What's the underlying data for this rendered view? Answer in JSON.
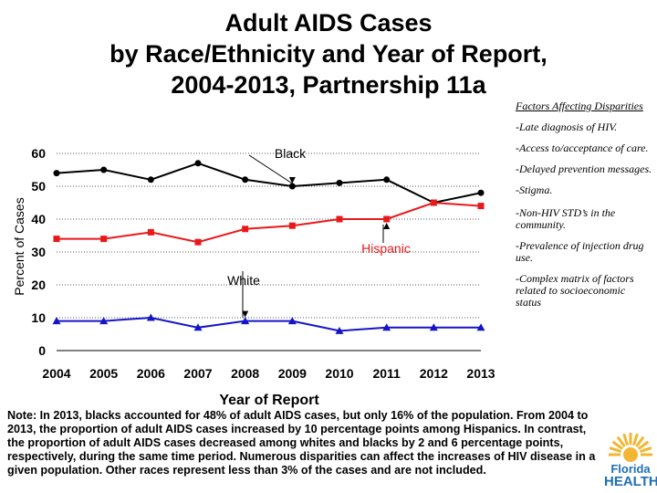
{
  "title_lines": [
    "Adult AIDS Cases",
    "by Race/Ethnicity and Year of Report,",
    "2004-2013, Partnership 11a"
  ],
  "chart_data": {
    "type": "line",
    "title": "Adult AIDS Cases by Race/Ethnicity and Year of Report, 2004-2013, Partnership 11a",
    "xlabel": "Year of Report",
    "ylabel": "Percent of Cases",
    "x": [
      "2004",
      "2005",
      "2006",
      "2007",
      "2008",
      "2009",
      "2010",
      "2011",
      "2012",
      "2013"
    ],
    "ylim": [
      0,
      60
    ],
    "yticks": [
      0,
      10,
      20,
      30,
      40,
      50,
      60
    ],
    "grid": "horizontal dotted",
    "series": [
      {
        "name": "Black",
        "color": "#000000",
        "marker": "circle",
        "values": [
          54,
          55,
          52,
          57,
          52,
          50,
          51,
          52,
          45,
          48
        ]
      },
      {
        "name": "Hispanic",
        "color": "#e8191b",
        "marker": "square",
        "values": [
          34,
          34,
          36,
          33,
          37,
          38,
          40,
          40,
          45,
          44
        ]
      },
      {
        "name": "White",
        "color": "#1515c8",
        "marker": "triangle",
        "values": [
          9,
          9,
          10,
          7,
          9,
          9,
          6,
          7,
          7,
          7
        ]
      }
    ],
    "annotations": [
      {
        "text": "Black",
        "points_to": {
          "x": "2009",
          "series": "Black"
        }
      },
      {
        "text": "Hispanic",
        "points_to": {
          "x": "2011",
          "series": "Hispanic"
        }
      },
      {
        "text": "White",
        "points_to": {
          "x": "2008",
          "series": "White"
        }
      }
    ]
  },
  "factors": {
    "header": "Factors Affecting Disparities",
    "items": [
      "-Late diagnosis of HIV.",
      "-Access to/acceptance of care.",
      "-Delayed prevention messages.",
      "-Stigma.",
      "-Non-HIV STD’s in the community.",
      "-Prevalence of injection drug use.",
      "-Complex matrix of factors related to socioeconomic status"
    ]
  },
  "note": "Note:  In 2013, blacks accounted for 48% of adult AIDS cases, but only 16% of the population. From 2004 to 2013, the proportion of adult AIDS cases increased by 10 percentage points among Hispanics. In contrast, the proportion of adult AIDS cases decreased among whites and blacks by 2 and 6 percentage points, respectively, during the same time period.  Numerous disparities can affect the increases of HIV disease in a given population. Other races represent less than 3% of the cases and are not included.",
  "logo": {
    "line1": "Florida",
    "line2": "HEALTH",
    "colors": {
      "sun": "#f2b632",
      "text": "#1f6fb5"
    }
  }
}
